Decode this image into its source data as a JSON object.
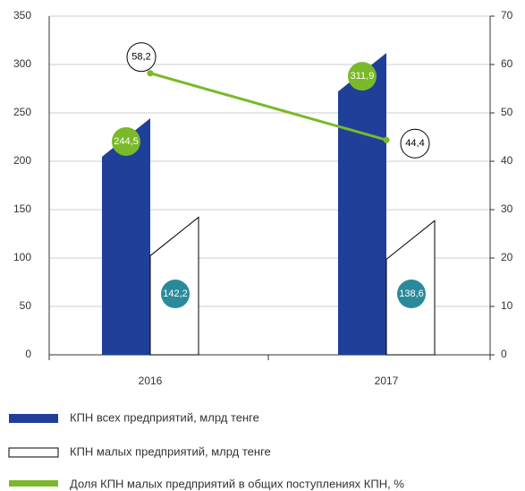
{
  "chart_data": {
    "type": "bar_line",
    "categories": [
      "2016",
      "2017"
    ],
    "series": [
      {
        "name": "КПН всех предприятий, млрд тенге",
        "color": "#1f3f99",
        "label_color": "#7ab929",
        "values": [
          244.5,
          311.9
        ],
        "value_labels": [
          "244,5",
          "311,9"
        ]
      },
      {
        "name": "КПН малых предприятий, млрд тенге",
        "color": "#ffffff",
        "label_color": "#2a8a9b",
        "values": [
          142.2,
          138.6
        ],
        "value_labels": [
          "142,2",
          "138,6"
        ]
      },
      {
        "name": "Доля КПН малых предприятий в общих поступлениях КПН, %",
        "color": "#7ab929",
        "label_color": "#ffffff",
        "axis": "y2",
        "values": [
          58.2,
          44.4
        ],
        "value_labels": [
          "58,2",
          "44,4"
        ]
      }
    ],
    "ylim": [
      0,
      350
    ],
    "yticks": [
      0,
      50,
      100,
      150,
      200,
      250,
      300,
      350
    ],
    "y2lim": [
      0,
      70
    ],
    "y2ticks": [
      0,
      10,
      20,
      30,
      40,
      50,
      60,
      70
    ],
    "grid": true
  }
}
